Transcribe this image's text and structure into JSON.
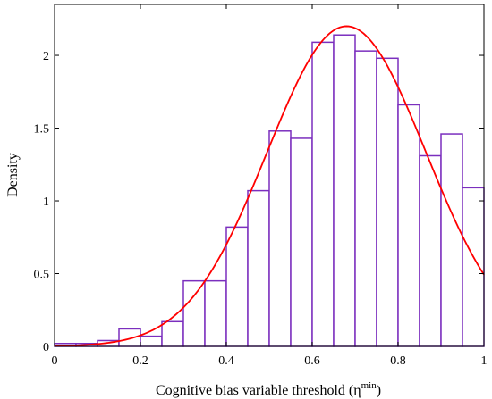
{
  "chart_data": {
    "type": "bar",
    "xlabel": "Cognitive bias variable threshold (η",
    "xlabel_sup": "min",
    "xlabel_close": ")",
    "ylabel": "Density",
    "xlim": [
      0,
      1
    ],
    "ylim": [
      0,
      2.35
    ],
    "xticks": [
      0,
      0.2,
      0.4,
      0.6,
      0.8,
      1
    ],
    "xtick_labels": [
      "0",
      "0.2",
      "0.4",
      "0.6",
      "0.8",
      "1"
    ],
    "yticks": [
      0,
      0.5,
      1,
      1.5,
      2
    ],
    "ytick_labels": [
      "0",
      "0.5",
      "1",
      "1.5",
      "2"
    ],
    "grid": false,
    "bin_width": 0.05,
    "bin_edges": [
      0,
      0.05,
      0.1,
      0.15,
      0.2,
      0.25,
      0.3,
      0.35,
      0.4,
      0.45,
      0.5,
      0.55,
      0.6,
      0.65,
      0.7,
      0.75,
      0.8,
      0.85,
      0.9,
      0.95,
      1.0
    ],
    "values": [
      0.02,
      0.02,
      0.04,
      0.12,
      0.07,
      0.17,
      0.45,
      0.45,
      0.82,
      1.07,
      1.48,
      1.43,
      2.09,
      2.14,
      2.03,
      1.98,
      1.66,
      1.31,
      1.46,
      1.09
    ],
    "bar_edge_color": "#7b2fbe",
    "fit_curve": {
      "type": "normal",
      "mean": 0.68,
      "sd": 0.185,
      "peak": 2.2,
      "color": "#ff0000"
    }
  }
}
